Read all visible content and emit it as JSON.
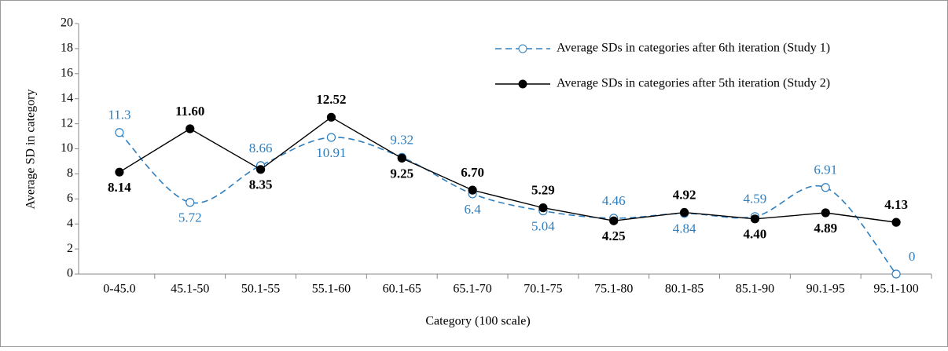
{
  "chart_data": {
    "type": "line",
    "x_label": "Category (100 scale)",
    "y_label": "Average SD in category",
    "categories": [
      "0-45.0",
      "45.1-50",
      "50.1-55",
      "55.1-60",
      "60.1-65",
      "65.1-70",
      "70.1-75",
      "75.1-80",
      "80.1-85",
      "85.1-90",
      "90.1-95",
      "95.1-100"
    ],
    "series": [
      {
        "name": "Average SDs in categories after 6th iteration (Study 1)",
        "color": "#2e7fc0",
        "style": "dashed",
        "smooth": true,
        "marker": "open",
        "values": [
          11.3,
          5.72,
          8.66,
          10.91,
          9.32,
          6.4,
          5.04,
          4.46,
          4.84,
          4.59,
          6.91,
          0
        ]
      },
      {
        "name": "Average SDs in categories after 5th iteration (Study 2)",
        "color": "#000000",
        "style": "solid",
        "smooth": false,
        "marker": "filled",
        "values": [
          8.14,
          11.6,
          8.35,
          12.52,
          9.25,
          6.7,
          5.29,
          4.25,
          4.92,
          4.4,
          4.89,
          4.13
        ],
        "value_labels": [
          "8.14",
          "11.60",
          "8.35",
          "12.52",
          "9.25",
          "6.70",
          "5.29",
          "4.25",
          "4.92",
          "4.40",
          "4.89",
          "4.13"
        ]
      }
    ],
    "ylim": [
      0,
      20
    ],
    "yticks": [
      0,
      2,
      4,
      6,
      8,
      10,
      12,
      14,
      16,
      18,
      20
    ],
    "grid": false
  }
}
